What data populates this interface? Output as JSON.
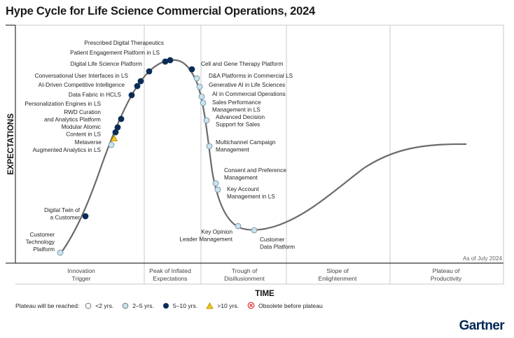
{
  "title": "Hype Cycle for Life Science Commercial Operations, 2024",
  "y_axis_label": "EXPECTATIONS",
  "x_axis_label": "TIME",
  "as_of": "As of July 2024",
  "phases": [
    {
      "line1": "Innovation",
      "line2": "Trigger"
    },
    {
      "line1": "Peak of Inflated",
      "line2": "Expectations"
    },
    {
      "line1": "Trough of",
      "line2": "Disillusionment"
    },
    {
      "line1": "Slope of",
      "line2": "Enlightenment"
    },
    {
      "line1": "Plateau of",
      "line2": "Productivity"
    }
  ],
  "legend": {
    "lead": "Plateau will be reached:",
    "items": [
      {
        "label": "<2 yrs.",
        "kind": "lt2"
      },
      {
        "label": "2–5 yrs.",
        "kind": "2to5"
      },
      {
        "label": "5–10 yrs.",
        "kind": "5to10"
      },
      {
        "label": ">10 yrs.",
        "kind": "gt10"
      },
      {
        "label": "Obsolete before plateau",
        "kind": "obsolete"
      }
    ]
  },
  "colors": {
    "lt2": "#ffffff",
    "2to5": "#c9e3ef",
    "5to10": "#0b2d55",
    "gt10": "#f5c518",
    "obsolete": "#e02020",
    "curve": "#6b6b6b"
  },
  "technologies": [
    {
      "name": [
        "Customer",
        "Technology",
        "Platform"
      ],
      "plateau": "2to5"
    },
    {
      "name": [
        "Digital Twin of",
        "a Customer"
      ],
      "plateau": "5to10"
    },
    {
      "name": [
        "Augmented Analytics in LS"
      ],
      "plateau": "2to5"
    },
    {
      "name": [
        "Metaverse"
      ],
      "plateau": "gt10"
    },
    {
      "name": [
        "Modular Atomic",
        "Content in LS"
      ],
      "plateau": "5to10"
    },
    {
      "name": [
        "RWD Curation",
        "and Analytics Platform"
      ],
      "plateau": "5to10"
    },
    {
      "name": [
        "Personalization Engines in LS"
      ],
      "plateau": "5to10"
    },
    {
      "name": [
        "Data Fabric in HCLS"
      ],
      "plateau": "5to10"
    },
    {
      "name": [
        "AI-Driven Competitive Intelligence"
      ],
      "plateau": "5to10"
    },
    {
      "name": [
        "Conversational User Interfaces in LS"
      ],
      "plateau": "5to10"
    },
    {
      "name": [
        "Digital Life Science Platform"
      ],
      "plateau": "5to10"
    },
    {
      "name": [
        "Patient Engagement Platform in LS"
      ],
      "plateau": "5to10"
    },
    {
      "name": [
        "Prescribed Digital Therapeutics"
      ],
      "plateau": "5to10"
    },
    {
      "name": [
        "Cell and Gene Therapy Platform"
      ],
      "plateau": "5to10"
    },
    {
      "name": [
        "D&A Platforms in Commercial LS"
      ],
      "plateau": "2to5"
    },
    {
      "name": [
        "Generative AI in Life Sciences"
      ],
      "plateau": "2to5"
    },
    {
      "name": [
        "AI in Commercial Operations"
      ],
      "plateau": "2to5"
    },
    {
      "name": [
        "Sales Performance",
        "Management in LS"
      ],
      "plateau": "2to5"
    },
    {
      "name": [
        "Advanced Decision",
        "Support for Sales"
      ],
      "plateau": "2to5"
    },
    {
      "name": [
        "Multichannel Campaign",
        "Management"
      ],
      "plateau": "2to5"
    },
    {
      "name": [
        "Consent and Preference",
        "Management"
      ],
      "plateau": "2to5"
    },
    {
      "name": [
        "Key Account",
        "Management in LS"
      ],
      "plateau": "2to5"
    },
    {
      "name": [
        "Key Opinion",
        "Leader Management"
      ],
      "plateau": "2to5"
    },
    {
      "name": [
        "Customer",
        "Data Platform"
      ],
      "plateau": "2to5"
    }
  ],
  "brand": "Gartner"
}
